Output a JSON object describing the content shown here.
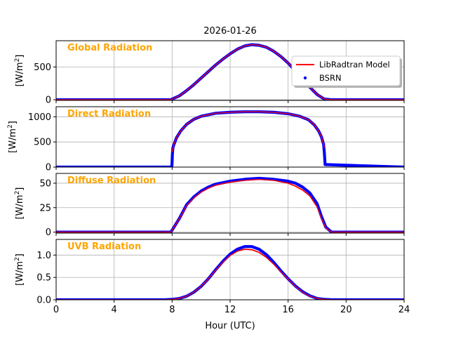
{
  "figure": {
    "title": "2026-01-26",
    "xlabel": "Hour (UTC)"
  },
  "colors": {
    "model": "#FF0000",
    "measured": "#0000FF",
    "panel_label": "#FFA500",
    "grid": "#b0b0b0"
  },
  "legend": {
    "placement": "top-right of first panel",
    "entries": [
      {
        "label": "LibRadtran Model",
        "style": "line",
        "color": "#FF0000"
      },
      {
        "label": "BSRN",
        "style": "dot",
        "color": "#0000FF"
      }
    ]
  },
  "chart_data": [
    {
      "type": "line",
      "panel": "Global Radiation",
      "ylabel": "[W/m2]",
      "xlim": [
        0,
        24
      ],
      "ylim": [
        -10,
        900
      ],
      "yticks": [
        0,
        500
      ],
      "xticks": [
        0,
        4,
        8,
        12,
        16,
        20,
        24
      ],
      "grid": true,
      "series": [
        {
          "name": "LibRadtran Model",
          "x": [
            0,
            7.9,
            8.0,
            8.5,
            9,
            9.5,
            10,
            10.5,
            11,
            11.5,
            12,
            12.5,
            13,
            13.5,
            14,
            14.5,
            15,
            15.5,
            16,
            16.5,
            17,
            17.5,
            18,
            18.5,
            19,
            24
          ],
          "y": [
            0,
            0,
            10,
            60,
            140,
            230,
            330,
            430,
            530,
            620,
            700,
            770,
            820,
            840,
            830,
            800,
            740,
            660,
            560,
            440,
            320,
            190,
            80,
            10,
            0,
            0
          ]
        },
        {
          "name": "BSRN",
          "x": [
            0,
            7.9,
            8.0,
            8.5,
            9,
            9.5,
            10,
            10.5,
            11,
            11.5,
            12,
            12.5,
            13,
            13.5,
            14,
            14.5,
            15,
            15.5,
            16,
            16.5,
            17,
            17.5,
            18,
            18.5,
            19,
            24
          ],
          "y": [
            0,
            0,
            10,
            60,
            140,
            230,
            330,
            430,
            530,
            620,
            700,
            770,
            820,
            840,
            830,
            800,
            740,
            660,
            560,
            440,
            320,
            190,
            80,
            10,
            0,
            0
          ]
        }
      ]
    },
    {
      "type": "line",
      "panel": "Direct Radiation",
      "ylabel": "[W/m2]",
      "xlim": [
        0,
        24
      ],
      "ylim": [
        0,
        1200
      ],
      "yticks": [
        0,
        500,
        1000
      ],
      "xticks": [
        0,
        4,
        8,
        12,
        16,
        20,
        24
      ],
      "grid": true,
      "series": [
        {
          "name": "LibRadtran Model",
          "x": [
            8.0,
            8.1,
            8.3,
            8.6,
            9,
            9.5,
            10,
            11,
            12,
            13,
            14,
            15,
            16,
            16.8,
            17.4,
            17.8,
            18.1,
            18.3,
            18.45,
            18.5
          ],
          "y": [
            300,
            430,
            580,
            720,
            850,
            950,
            1010,
            1070,
            1090,
            1100,
            1100,
            1090,
            1060,
            1010,
            940,
            840,
            720,
            600,
            450,
            380
          ]
        },
        {
          "name": "BSRN",
          "x": [
            0,
            7.98,
            8.0,
            8.02,
            8.05,
            8.1,
            8.3,
            8.6,
            9,
            9.5,
            10,
            11,
            12,
            13,
            14,
            15,
            16,
            16.8,
            17.4,
            17.8,
            18.1,
            18.3,
            18.45,
            18.5,
            18.55,
            24
          ],
          "y": [
            0,
            0,
            100,
            250,
            380,
            430,
            580,
            720,
            850,
            950,
            1010,
            1070,
            1090,
            1100,
            1100,
            1090,
            1060,
            1010,
            940,
            840,
            720,
            600,
            450,
            290,
            50,
            0
          ]
        }
      ]
    },
    {
      "type": "line",
      "panel": "Diffuse Radiation",
      "ylabel": "[W/m2]",
      "xlim": [
        0,
        24
      ],
      "ylim": [
        -1,
        60
      ],
      "yticks": [
        0,
        25,
        50
      ],
      "xticks": [
        0,
        4,
        8,
        12,
        16,
        20,
        24
      ],
      "grid": true,
      "series": [
        {
          "name": "LibRadtran Model",
          "x": [
            0,
            7.9,
            8,
            8.5,
            9,
            9.5,
            10,
            10.5,
            11,
            12,
            13,
            14,
            15,
            16,
            16.5,
            17,
            17.5,
            18,
            18.3,
            18.6,
            19,
            24
          ],
          "y": [
            0,
            0,
            2,
            14,
            27,
            35,
            41,
            45,
            48,
            51,
            53,
            54,
            53,
            50,
            47,
            43,
            37,
            26,
            14,
            4,
            0,
            0
          ]
        },
        {
          "name": "BSRN",
          "x": [
            0,
            7.9,
            8,
            8.5,
            9,
            9.5,
            10,
            10.5,
            11,
            12,
            13,
            14,
            15,
            16,
            16.5,
            17,
            17.5,
            18,
            18.3,
            18.6,
            19,
            24
          ],
          "y": [
            0,
            0,
            2,
            14,
            28,
            36,
            42,
            46,
            49,
            52,
            54,
            55,
            54,
            52,
            50,
            46,
            40,
            29,
            16,
            5,
            0,
            0
          ]
        }
      ]
    },
    {
      "type": "line",
      "panel": "UVB Radiation",
      "ylabel": "[W/m2]",
      "xlim": [
        0,
        24
      ],
      "ylim": [
        0,
        1.35
      ],
      "yticks": [
        0.0,
        0.5,
        1.0
      ],
      "xticks": [
        0,
        4,
        8,
        12,
        16,
        20,
        24
      ],
      "grid": true,
      "series": [
        {
          "name": "LibRadtran Model",
          "x": [
            0,
            7.5,
            8,
            8.5,
            9,
            9.5,
            10,
            10.5,
            11,
            11.5,
            12,
            12.5,
            13,
            13.5,
            14,
            14.5,
            15,
            15.5,
            16,
            16.5,
            17,
            17.5,
            18,
            18.5,
            19,
            24
          ],
          "y": [
            0,
            0,
            0.01,
            0.03,
            0.08,
            0.17,
            0.3,
            0.47,
            0.66,
            0.84,
            0.99,
            1.09,
            1.13,
            1.12,
            1.06,
            0.95,
            0.8,
            0.63,
            0.46,
            0.3,
            0.17,
            0.08,
            0.03,
            0.01,
            0,
            0
          ]
        },
        {
          "name": "BSRN",
          "x": [
            0,
            7.5,
            8,
            8.5,
            9,
            9.5,
            10,
            10.5,
            11,
            11.5,
            12,
            12.5,
            13,
            13.5,
            14,
            14.5,
            15,
            15.5,
            16,
            16.5,
            17,
            17.5,
            18,
            18.5,
            19,
            24
          ],
          "y": [
            0,
            0,
            0.01,
            0.03,
            0.08,
            0.17,
            0.3,
            0.47,
            0.67,
            0.86,
            1.02,
            1.13,
            1.19,
            1.19,
            1.13,
            1.01,
            0.84,
            0.65,
            0.47,
            0.31,
            0.18,
            0.09,
            0.03,
            0.01,
            0,
            0
          ]
        }
      ]
    }
  ]
}
